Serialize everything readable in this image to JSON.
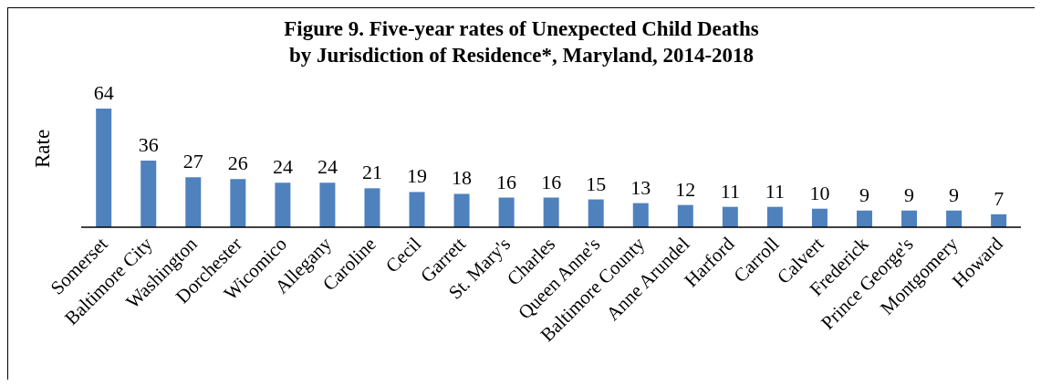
{
  "chart_data": {
    "type": "bar",
    "title": "Figure 9. Five-year rates of Unexpected Child Deaths\nby Jurisdiction of Residence*, Maryland, 2014-2018",
    "ylabel": "Rate",
    "categories": [
      "Somerset",
      "Baltimore City",
      "Washington",
      "Dorchester",
      "Wicomico",
      "Allegany",
      "Caroline",
      "Cecil",
      "Garrett",
      "St. Mary's",
      "Charles",
      "Queen Anne's",
      "Baltimore County",
      "Anne Arundel",
      "Harford",
      "Carroll",
      "Calvert",
      "Frederick",
      "Prince George's",
      "Montgomery",
      "Howard"
    ],
    "values": [
      64,
      36,
      27,
      26,
      24,
      24,
      21,
      19,
      18,
      16,
      16,
      15,
      13,
      12,
      11,
      11,
      10,
      9,
      9,
      9,
      7
    ],
    "color": "#4f81bd",
    "data_labels": true,
    "grid": false,
    "legend": false
  }
}
